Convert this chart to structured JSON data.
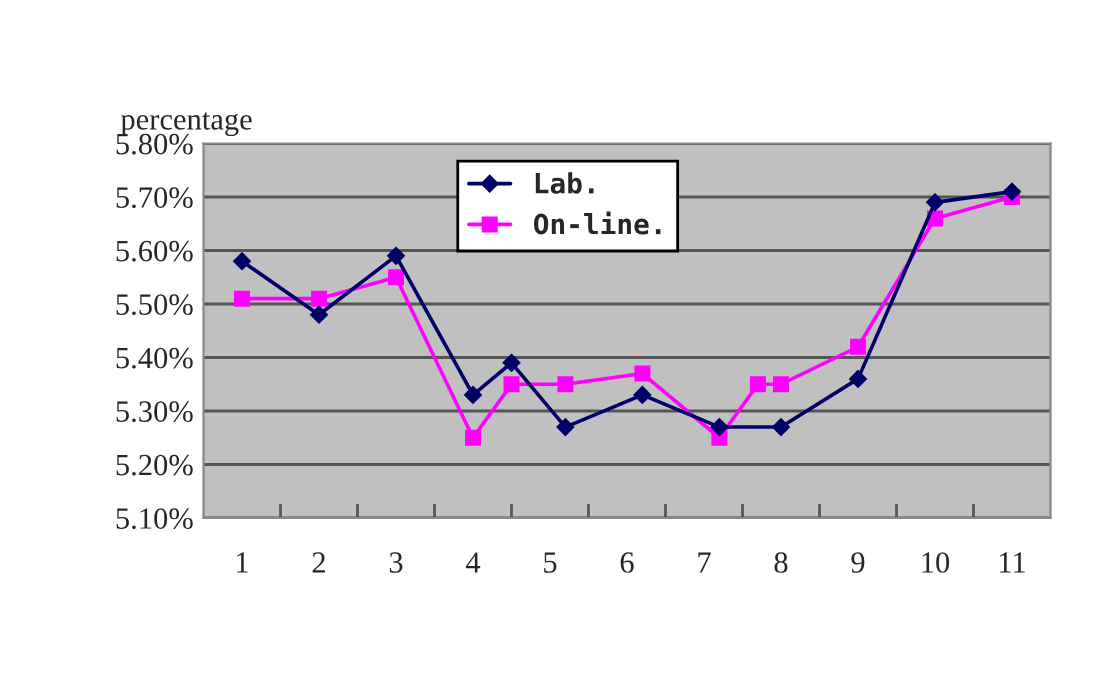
{
  "chart_data": {
    "type": "line",
    "ylabel": "percentage",
    "xlim": [
      0.5,
      11.5
    ],
    "xticks": [
      {
        "value": 1,
        "label": "1"
      },
      {
        "value": 1.5,
        "label": null
      },
      {
        "value": 2,
        "label": "2"
      },
      {
        "value": 2.5,
        "label": null
      },
      {
        "value": 3,
        "label": "3"
      },
      {
        "value": 3.5,
        "label": null
      },
      {
        "value": 4,
        "label": "4"
      },
      {
        "value": 4.5,
        "label": null
      },
      {
        "value": 5,
        "label": "5"
      },
      {
        "value": 5.5,
        "label": null
      },
      {
        "value": 6,
        "label": "6"
      },
      {
        "value": 6.5,
        "label": null
      },
      {
        "value": 7,
        "label": "7"
      },
      {
        "value": 7.5,
        "label": null
      },
      {
        "value": 8,
        "label": "8"
      },
      {
        "value": 8.5,
        "label": null
      },
      {
        "value": 9,
        "label": "9"
      },
      {
        "value": 9.5,
        "label": null
      },
      {
        "value": 10,
        "label": "10"
      },
      {
        "value": 10.5,
        "label": null
      },
      {
        "value": 11,
        "label": "11"
      }
    ],
    "ylim": [
      5.1,
      5.8
    ],
    "yticks": [
      {
        "value": 5.1,
        "label": "5.10%"
      },
      {
        "value": 5.2,
        "label": "5.20%"
      },
      {
        "value": 5.3,
        "label": "5.30%"
      },
      {
        "value": 5.4,
        "label": "5.40%"
      },
      {
        "value": 5.5,
        "label": "5.50%"
      },
      {
        "value": 5.6,
        "label": "5.60%"
      },
      {
        "value": 5.7,
        "label": "5.70%"
      },
      {
        "value": 5.8,
        "label": "5.80%"
      }
    ],
    "grid": "y",
    "legend": "top",
    "line_style": "solid",
    "series": [
      {
        "name": "Lab.",
        "color": "#000066",
        "marker": "diamond",
        "x": [
          1,
          2,
          3,
          4,
          4.5,
          5.2,
          6.2,
          7.2,
          8,
          9,
          10,
          11
        ],
        "values": [
          5.58,
          5.48,
          5.59,
          5.33,
          5.39,
          5.27,
          5.33,
          5.27,
          5.27,
          5.36,
          5.69,
          5.71
        ]
      },
      {
        "name": "On-line.",
        "color": "#ff00ff",
        "marker": "square",
        "x": [
          1,
          2,
          3,
          4,
          4.5,
          5.2,
          6.2,
          7.2,
          7.7,
          8,
          9,
          10,
          11
        ],
        "values": [
          5.51,
          5.51,
          5.55,
          5.25,
          5.35,
          5.35,
          5.37,
          5.25,
          5.35,
          5.35,
          5.42,
          5.66,
          5.7
        ]
      }
    ]
  }
}
